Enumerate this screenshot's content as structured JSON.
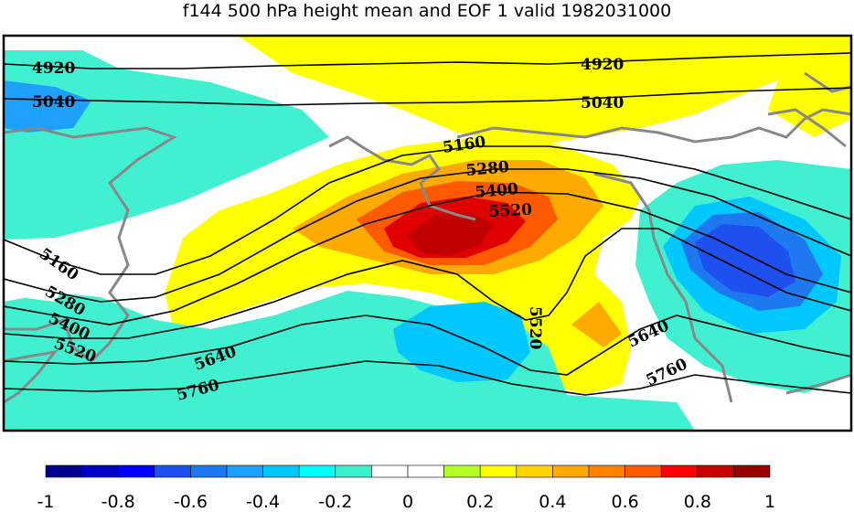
{
  "title": "f144 500 hPa height mean and EOF 1 valid 1982031000",
  "contours": [
    {
      "value": "4920",
      "labels": [
        "4920",
        "4920"
      ]
    },
    {
      "value": "5040",
      "labels": [
        "5040",
        "5040"
      ]
    },
    {
      "value": "5160",
      "labels": [
        "5160",
        "5160"
      ]
    },
    {
      "value": "5280",
      "labels": [
        "5280",
        "5280"
      ]
    },
    {
      "value": "5400",
      "labels": [
        "5400",
        "5400"
      ]
    },
    {
      "value": "5520",
      "labels": [
        "5520",
        "5520",
        "5520"
      ]
    },
    {
      "value": "5640",
      "labels": [
        "5640",
        "5640"
      ]
    },
    {
      "value": "5760",
      "labels": [
        "5760",
        "5760"
      ]
    }
  ],
  "colorbar": {
    "min": -1,
    "max": 1,
    "colors": [
      "#00008c",
      "#0000c8",
      "#0000ff",
      "#1e50f0",
      "#1e78f0",
      "#1ea0ff",
      "#00c8ff",
      "#00ffff",
      "#3cf0cc",
      "#ffffff",
      "#ffffff",
      "#b4ff28",
      "#ffff00",
      "#ffd200",
      "#ffaa00",
      "#ff8200",
      "#ff5a00",
      "#ff0000",
      "#c80000",
      "#960000"
    ],
    "tick_labels": [
      "-1",
      "-0.8",
      "-0.6",
      "-0.4",
      "-0.2",
      "0",
      "0.2",
      "0.4",
      "0.6",
      "0.8",
      "1"
    ]
  },
  "fill_colors": {
    "neg_weak": "#40f0d0",
    "neg_mod": "#00c8ff",
    "neg_strong": "#1e78f0",
    "neg_max": "#1e50f0",
    "pos_weak": "#ffff00",
    "pos_mod": "#ffaa00",
    "pos_strong": "#ff5a00",
    "pos_max": "#e00000",
    "pos_core": "#c00000",
    "coast": "#888888"
  }
}
